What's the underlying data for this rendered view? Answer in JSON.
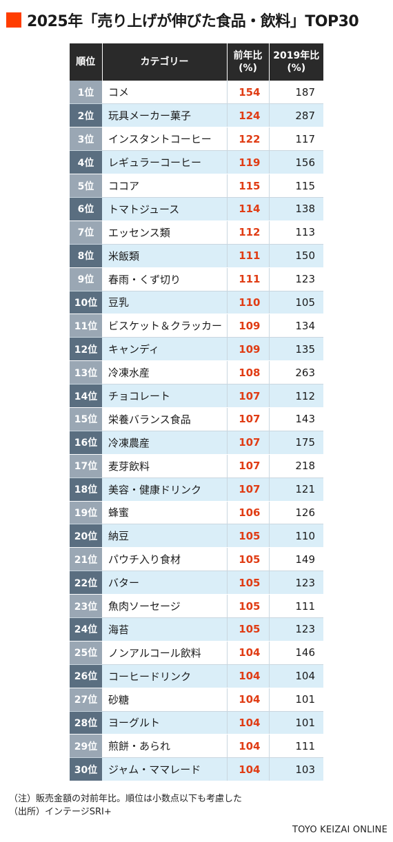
{
  "title": "2025年「売り上げが伸びた食品・飲料」TOP30",
  "accent_color": "#ff3d00",
  "value_color": "#e03c14",
  "header": {
    "rank": "順位",
    "category": "カテゴリー",
    "prev_year_line1": "前年比",
    "prev_year_line2": "(%)",
    "y2019_line1": "2019年比",
    "y2019_line2": "(%)"
  },
  "rows": [
    {
      "rank": "1位",
      "category": "コメ",
      "prev": "154",
      "y2019": "187"
    },
    {
      "rank": "2位",
      "category": "玩具メーカー菓子",
      "prev": "124",
      "y2019": "287"
    },
    {
      "rank": "3位",
      "category": "インスタントコーヒー",
      "prev": "122",
      "y2019": "117"
    },
    {
      "rank": "4位",
      "category": "レギュラーコーヒー",
      "prev": "119",
      "y2019": "156"
    },
    {
      "rank": "5位",
      "category": "ココア",
      "prev": "115",
      "y2019": "115"
    },
    {
      "rank": "6位",
      "category": "トマトジュース",
      "prev": "114",
      "y2019": "138"
    },
    {
      "rank": "7位",
      "category": "エッセンス類",
      "prev": "112",
      "y2019": "113"
    },
    {
      "rank": "8位",
      "category": "米飯類",
      "prev": "111",
      "y2019": "150"
    },
    {
      "rank": "9位",
      "category": "春雨・くず切り",
      "prev": "111",
      "y2019": "123"
    },
    {
      "rank": "10位",
      "category": "豆乳",
      "prev": "110",
      "y2019": "105"
    },
    {
      "rank": "11位",
      "category": "ビスケット＆クラッカー",
      "prev": "109",
      "y2019": "134"
    },
    {
      "rank": "12位",
      "category": "キャンディ",
      "prev": "109",
      "y2019": "135"
    },
    {
      "rank": "13位",
      "category": "冷凍水産",
      "prev": "108",
      "y2019": "263"
    },
    {
      "rank": "14位",
      "category": "チョコレート",
      "prev": "107",
      "y2019": "112"
    },
    {
      "rank": "15位",
      "category": "栄養バランス食品",
      "prev": "107",
      "y2019": "143"
    },
    {
      "rank": "16位",
      "category": "冷凍農産",
      "prev": "107",
      "y2019": "175"
    },
    {
      "rank": "17位",
      "category": "麦芽飲料",
      "prev": "107",
      "y2019": "218"
    },
    {
      "rank": "18位",
      "category": "美容・健康ドリンク",
      "prev": "107",
      "y2019": "121"
    },
    {
      "rank": "19位",
      "category": "蜂蜜",
      "prev": "106",
      "y2019": "126"
    },
    {
      "rank": "20位",
      "category": "納豆",
      "prev": "105",
      "y2019": "110"
    },
    {
      "rank": "21位",
      "category": "パウチ入り食材",
      "prev": "105",
      "y2019": "149"
    },
    {
      "rank": "22位",
      "category": "バター",
      "prev": "105",
      "y2019": "123"
    },
    {
      "rank": "23位",
      "category": "魚肉ソーセージ",
      "prev": "105",
      "y2019": "111"
    },
    {
      "rank": "24位",
      "category": "海苔",
      "prev": "105",
      "y2019": "123"
    },
    {
      "rank": "25位",
      "category": "ノンアルコール飲料",
      "prev": "104",
      "y2019": "146"
    },
    {
      "rank": "26位",
      "category": "コーヒードリンク",
      "prev": "104",
      "y2019": "104"
    },
    {
      "rank": "27位",
      "category": "砂糖",
      "prev": "104",
      "y2019": "101"
    },
    {
      "rank": "28位",
      "category": "ヨーグルト",
      "prev": "104",
      "y2019": "101"
    },
    {
      "rank": "29位",
      "category": "煎餅・あられ",
      "prev": "104",
      "y2019": "111"
    },
    {
      "rank": "30位",
      "category": "ジャム・ママレード",
      "prev": "104",
      "y2019": "103"
    }
  ],
  "notes": {
    "note": "（注）販売金額の対前年比。順位は小数点以下も考慮した",
    "source": "（出所）インテージSRI+"
  },
  "brand": "TOYO KEIZAI ONLINE"
}
